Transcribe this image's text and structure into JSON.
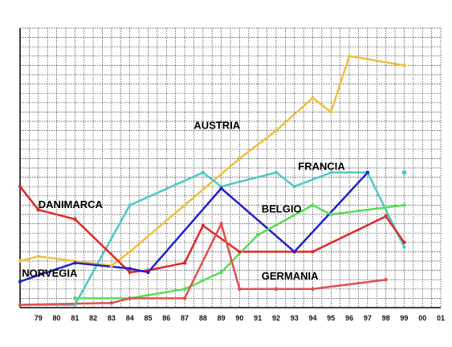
{
  "chart_data": {
    "type": "line",
    "x": [
      "79",
      "80",
      "81",
      "82",
      "83",
      "84",
      "85",
      "86",
      "87",
      "88",
      "89",
      "90",
      "91",
      "92",
      "93",
      "94",
      "95",
      "96",
      "97",
      "98",
      "99",
      "00",
      "01"
    ],
    "xlim": [
      78,
      101
    ],
    "ylim": [
      0,
      30
    ],
    "grid": true,
    "legend": "inline labels",
    "series": [
      {
        "name": "AUSTRIA",
        "color": "#f0c03a",
        "points": [
          [
            78,
            5.0
          ],
          [
            79,
            5.5
          ],
          [
            81,
            5.0
          ],
          [
            83,
            4.5
          ],
          [
            84,
            6.0
          ],
          [
            90,
            16.0
          ],
          [
            92,
            19.0
          ],
          [
            94,
            22.5
          ],
          [
            95,
            21.0
          ],
          [
            96,
            27.0
          ],
          [
            99,
            26.0
          ]
        ]
      },
      {
        "name": "FRANCIA",
        "color": "#4fc9c4",
        "points": [
          [
            78,
            0.3
          ],
          [
            81,
            0.3
          ],
          [
            84,
            11.0
          ],
          [
            88,
            14.5
          ],
          [
            89,
            13.0
          ],
          [
            92,
            14.5
          ],
          [
            93,
            13.0
          ],
          [
            95,
            14.5
          ],
          [
            97,
            14.5
          ],
          [
            99,
            6.5
          ]
        ]
      },
      {
        "name": "DANIMARCA",
        "color": "#e02828",
        "points": [
          [
            78,
            13.0
          ],
          [
            79,
            10.5
          ],
          [
            81,
            9.5
          ],
          [
            84,
            3.8
          ],
          [
            85,
            4.0
          ],
          [
            87,
            4.8
          ],
          [
            88,
            8.8
          ],
          [
            90,
            6.0
          ],
          [
            93,
            6.0
          ],
          [
            94,
            6.0
          ],
          [
            98,
            9.8
          ],
          [
            99,
            7.0
          ]
        ]
      },
      {
        "name": "NORVEGIA",
        "color": "#2222cc",
        "points": [
          [
            78,
            2.8
          ],
          [
            81,
            4.8
          ],
          [
            84,
            4.2
          ],
          [
            85,
            3.8
          ],
          [
            89,
            12.8
          ],
          [
            93,
            6.0
          ],
          [
            97,
            14.5
          ]
        ]
      },
      {
        "name": "BELGIO",
        "color": "#55dd55",
        "points": [
          [
            81,
            1.0
          ],
          [
            84,
            1.0
          ],
          [
            87,
            2.0
          ],
          [
            89,
            3.8
          ],
          [
            91,
            7.8
          ],
          [
            94,
            11.0
          ],
          [
            95,
            10.0
          ],
          [
            99,
            11.0
          ]
        ]
      },
      {
        "name": "GERMANIA",
        "color": "#e05050",
        "points": [
          [
            78,
            0.3
          ],
          [
            83,
            0.5
          ],
          [
            84,
            1.0
          ],
          [
            87,
            1.0
          ],
          [
            89,
            9.0
          ],
          [
            90,
            2.0
          ],
          [
            92,
            2.0
          ],
          [
            94,
            2.0
          ],
          [
            98,
            3.0
          ]
        ]
      }
    ],
    "labels": [
      {
        "text": "AUSTRIA",
        "x": 87.5,
        "y": 19.2
      },
      {
        "text": "FRANCIA",
        "x": 93.2,
        "y": 14.8
      },
      {
        "text": "DANIMARCA",
        "x": 79.0,
        "y": 10.7
      },
      {
        "text": "BELGIO",
        "x": 91.2,
        "y": 10.2
      },
      {
        "text": "NORVEGIA",
        "x": 78.1,
        "y": 3.3
      },
      {
        "text": "GERMANIA",
        "x": 91.2,
        "y": 3.0
      }
    ],
    "isolated_points": [
      {
        "series": "FRANCIA",
        "x": 99,
        "y": 14.5
      }
    ]
  }
}
